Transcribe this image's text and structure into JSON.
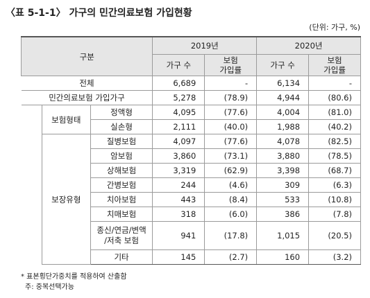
{
  "title": "〈표 5-1-1〉 가구의 민간의료보험 가입현황",
  "unit": "(단위: 가구, %)",
  "table": {
    "header": {
      "label": "구분",
      "years": [
        "2019년",
        "2020년"
      ],
      "columns": [
        [
          "가구 수"
        ],
        [
          "보험",
          "가입률"
        ],
        [
          "가구 수"
        ],
        [
          "보험",
          "가입률"
        ]
      ]
    },
    "rows": [
      {
        "label": "전체",
        "cells": [
          "6,689",
          "-",
          "6,134",
          "-"
        ]
      },
      {
        "label": "민간의료보험 가입가구",
        "cells": [
          "5,278",
          "(78.9)",
          "4,944",
          "(80.6)"
        ]
      },
      {
        "group": "보험형태",
        "items": [
          {
            "label": [
              "정액형"
            ],
            "cells": [
              "4,095",
              "(77.6)",
              "4,004",
              "(81.0)"
            ]
          },
          {
            "label": [
              "실손형"
            ],
            "cells": [
              "2,111",
              "(40.0)",
              "1,988",
              "(40.2)"
            ]
          }
        ]
      },
      {
        "group": "보장유형",
        "items": [
          {
            "label": [
              "질병보험"
            ],
            "cells": [
              "4,097",
              "(77.6)",
              "4,078",
              "(82.5)"
            ]
          },
          {
            "label": [
              "암보험"
            ],
            "cells": [
              "3,860",
              "(73.1)",
              "3,880",
              "(78.5)"
            ]
          },
          {
            "label": [
              "상해보험"
            ],
            "cells": [
              "3,319",
              "(62.9)",
              "3,398",
              "(68.7)"
            ]
          },
          {
            "label": [
              "간병보험"
            ],
            "cells": [
              "244",
              "(4.6)",
              "309",
              "(6.3)"
            ]
          },
          {
            "label": [
              "치아보험"
            ],
            "cells": [
              "443",
              "(8.4)",
              "533",
              "(10.8)"
            ]
          },
          {
            "label": [
              "치매보험"
            ],
            "cells": [
              "318",
              "(6.0)",
              "386",
              "(7.8)"
            ]
          },
          {
            "label": [
              "종신/연금/변액",
              "/저축 보험"
            ],
            "cells": [
              "941",
              "(17.8)",
              "1,015",
              "(20.5)"
            ]
          },
          {
            "label": [
              "기타"
            ],
            "cells": [
              "145",
              "(2.7)",
              "160",
              "(3.2)"
            ]
          }
        ]
      }
    ]
  },
  "notes": [
    "* 표본횡단가중치를 적용하여 산출함",
    "주: 중복선택가능"
  ]
}
